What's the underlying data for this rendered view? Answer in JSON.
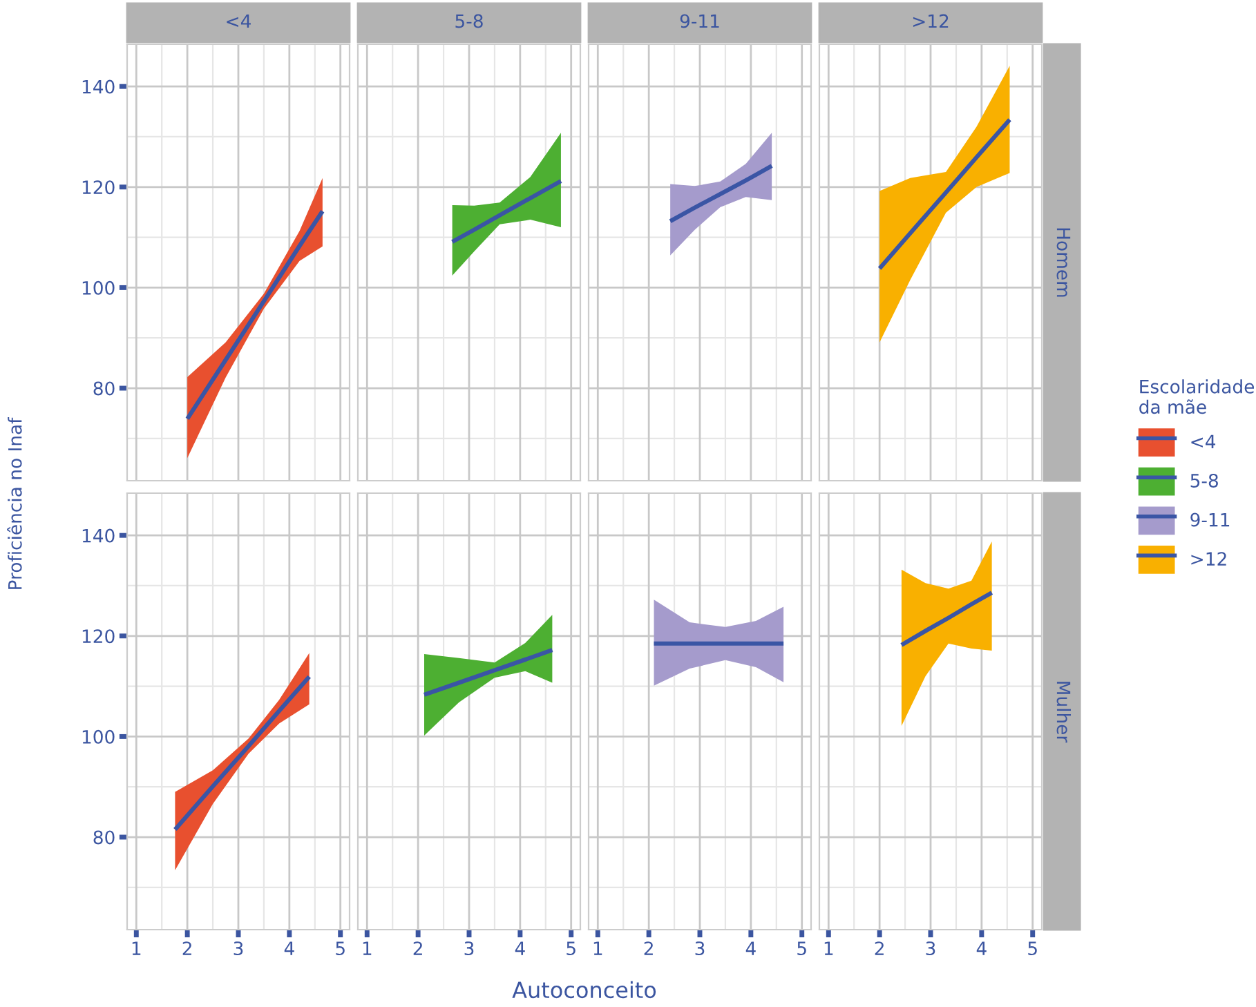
{
  "chart_data": [
    {
      "type": "line",
      "title": "<4",
      "legend": "right",
      "legend_title": "Escolaridade\nda mãe",
      "tick_labels": "y",
      "grid": true,
      "xlim": [
        0.82,
        5.18
      ],
      "ylim": [
        61.6,
        148.4
      ],
      "xticks": [
        1,
        2,
        3,
        4,
        5
      ],
      "yticks": [
        80,
        100,
        120,
        140
      ],
      "x": [
        2,
        2.75,
        3.5,
        4.2,
        4.65
      ],
      "series": [
        {
          "name": "<4",
          "color": "#3a55a5",
          "colors": [
            "#e8502f",
            "#e8502f",
            "#e8502f",
            "#e8502f",
            "#e8502f"
          ],
          "values": [
            73.9,
            85.6,
            97.3,
            108.3,
            115.2
          ],
          "lower": [
            66.1,
            82.1,
            95.8,
            105.3,
            108.2
          ],
          "upper": [
            82.2,
            89.1,
            98.8,
            111.3,
            121.8
          ]
        }
      ]
    },
    {
      "type": "line",
      "title": "5-8",
      "tick_labels": false,
      "grid": true,
      "xlim": [
        0.82,
        5.18
      ],
      "ylim": [
        61.6,
        148.4
      ],
      "xticks": [
        1,
        2,
        3,
        4,
        5
      ],
      "yticks": [
        80,
        100,
        120,
        140
      ],
      "x": [
        2.67,
        3.1,
        3.6,
        4.2,
        4.8
      ],
      "series": [
        {
          "name": "5-8",
          "color": "#3a55a5",
          "colors": [
            "#4daf32",
            "#4daf32",
            "#4daf32",
            "#4daf32",
            "#4daf32"
          ],
          "values": [
            109.1,
            111.5,
            114.4,
            117.8,
            121.2
          ],
          "lower": [
            102.4,
            107.2,
            112.6,
            113.5,
            112.0
          ],
          "upper": [
            116.4,
            116.3,
            116.9,
            122.0,
            130.8
          ]
        }
      ]
    },
    {
      "type": "line",
      "title": "9-11",
      "tick_labels": false,
      "grid": true,
      "xlim": [
        0.82,
        5.18
      ],
      "ylim": [
        61.6,
        148.4
      ],
      "xticks": [
        1,
        2,
        3,
        4,
        5
      ],
      "yticks": [
        80,
        100,
        120,
        140
      ],
      "x": [
        2.42,
        2.9,
        3.4,
        3.9,
        4.41
      ],
      "series": [
        {
          "name": "9-11",
          "color": "#3a55a5",
          "colors": [
            "#a59bcc",
            "#a59bcc",
            "#a59bcc",
            "#a59bcc",
            "#a59bcc"
          ],
          "values": [
            113.2,
            115.9,
            118.6,
            121.3,
            124.2
          ],
          "lower": [
            106.4,
            111.5,
            116.0,
            118.0,
            117.4
          ],
          "upper": [
            120.6,
            120.2,
            121.1,
            124.6,
            130.8
          ]
        }
      ]
    },
    {
      "type": "line",
      "title": ">12",
      "y2label": "Homem",
      "tick_labels": false,
      "grid": true,
      "xlim": [
        0.82,
        5.18
      ],
      "ylim": [
        61.6,
        148.4
      ],
      "xticks": [
        1,
        2,
        3,
        4,
        5
      ],
      "yticks": [
        80,
        100,
        120,
        140
      ],
      "x": [
        2,
        2.6,
        3.3,
        3.9,
        4.55
      ],
      "series": [
        {
          "name": ">12",
          "color": "#3a55a5",
          "colors": [
            "#f9b000",
            "#f9b000",
            "#f9b000",
            "#f9b000",
            "#f9b000"
          ],
          "values": [
            103.8,
            110.8,
            118.9,
            125.9,
            133.4
          ],
          "lower": [
            89.1,
            101.5,
            114.9,
            120.0,
            122.8
          ],
          "upper": [
            119.2,
            121.8,
            123.0,
            132.0,
            144.1
          ]
        }
      ]
    },
    {
      "type": "line",
      "ylabel": "Proficiência no Inaf",
      "grid": true,
      "xlim": [
        0.82,
        5.18
      ],
      "ylim": [
        61.6,
        148.4
      ],
      "xticks": [
        1,
        2,
        3,
        4,
        5
      ],
      "yticks": [
        80,
        100,
        120,
        140
      ],
      "x": [
        1.76,
        2.5,
        3.2,
        3.8,
        4.39
      ],
      "series": [
        {
          "color": "#3a55a5",
          "colors": [
            "#e8502f",
            "#e8502f",
            "#e8502f",
            "#e8502f",
            "#e8502f"
          ],
          "values": [
            81.5,
            90.1,
            98.1,
            105.1,
            111.9
          ],
          "lower": [
            73.4,
            86.6,
            96.6,
            102.6,
            106.4
          ],
          "upper": [
            89.0,
            93.3,
            99.6,
            107.3,
            116.6
          ]
        }
      ]
    },
    {
      "type": "line",
      "xlabel": "Autoconceito",
      "tick_labels": "x",
      "grid": true,
      "xlim": [
        0.82,
        5.18
      ],
      "ylim": [
        61.6,
        148.4
      ],
      "xticks": [
        1,
        2,
        3,
        4,
        5
      ],
      "yticks": [
        80,
        100,
        120,
        140
      ],
      "x": [
        2.12,
        2.8,
        3.5,
        4.1,
        4.63
      ],
      "series": [
        {
          "color": "#3a55a5",
          "colors": [
            "#4daf32",
            "#4daf32",
            "#4daf32",
            "#4daf32",
            "#4daf32"
          ],
          "values": [
            108.3,
            110.7,
            113.2,
            115.3,
            117.2
          ],
          "lower": [
            100.2,
            106.8,
            111.7,
            113.0,
            110.7
          ],
          "upper": [
            116.4,
            115.6,
            114.7,
            118.6,
            124.2
          ]
        }
      ]
    },
    {
      "type": "line",
      "tick_labels": "x",
      "grid": true,
      "xlim": [
        0.82,
        5.18
      ],
      "ylim": [
        61.6,
        148.4
      ],
      "xticks": [
        1,
        2,
        3,
        4,
        5
      ],
      "yticks": [
        80,
        100,
        120,
        140
      ],
      "x": [
        2.1,
        2.8,
        3.5,
        4.1,
        4.64
      ],
      "series": [
        {
          "color": "#3a55a5",
          "colors": [
            "#a59bcc",
            "#a59bcc",
            "#a59bcc",
            "#a59bcc",
            "#a59bcc"
          ],
          "values": [
            118.5,
            118.5,
            118.5,
            118.5,
            118.5
          ],
          "lower": [
            110.1,
            113.5,
            115.2,
            113.8,
            110.8
          ],
          "upper": [
            127.2,
            122.7,
            121.8,
            123.0,
            125.8
          ]
        }
      ]
    },
    {
      "type": "line",
      "y2label": "Mulher",
      "tick_labels": "x",
      "grid": true,
      "xlim": [
        0.82,
        5.18
      ],
      "ylim": [
        61.6,
        148.4
      ],
      "xticks": [
        1,
        2,
        3,
        4,
        5
      ],
      "yticks": [
        80,
        100,
        120,
        140
      ],
      "x": [
        2.43,
        2.9,
        3.35,
        3.8,
        4.2
      ],
      "series": [
        {
          "color": "#3a55a5",
          "colors": [
            "#f9b000",
            "#f9b000",
            "#f9b000",
            "#f9b000",
            "#f9b000"
          ],
          "values": [
            118.2,
            121.0,
            123.6,
            126.3,
            128.6
          ],
          "lower": [
            102.1,
            112.0,
            118.5,
            117.5,
            117.1
          ],
          "upper": [
            133.2,
            130.5,
            129.4,
            131.0,
            138.8
          ]
        }
      ]
    }
  ]
}
